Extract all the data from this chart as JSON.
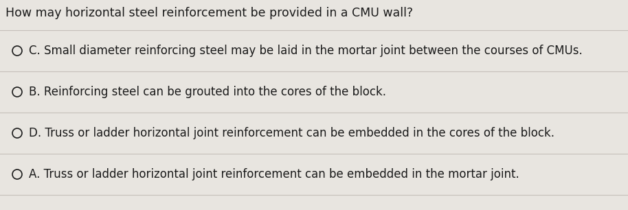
{
  "question": "How may horizontal steel reinforcement be provided in a CMU wall?",
  "options": [
    "C. Small diameter reinforcing steel may be laid in the mortar joint between the courses of CMUs.",
    "B. Reinforcing steel can be grouted into the cores of the block.",
    "D. Truss or ladder horizontal joint reinforcement can be embedded in the cores of the block.",
    "A. Truss or ladder horizontal joint reinforcement can be embedded in the mortar joint."
  ],
  "background_color": "#e8e5e0",
  "text_color": "#1a1a1a",
  "question_fontsize": 12.5,
  "option_fontsize": 12.0,
  "divider_color": "#c5c0ba",
  "fig_width": 9.14,
  "fig_height": 3.06,
  "dpi": 100
}
